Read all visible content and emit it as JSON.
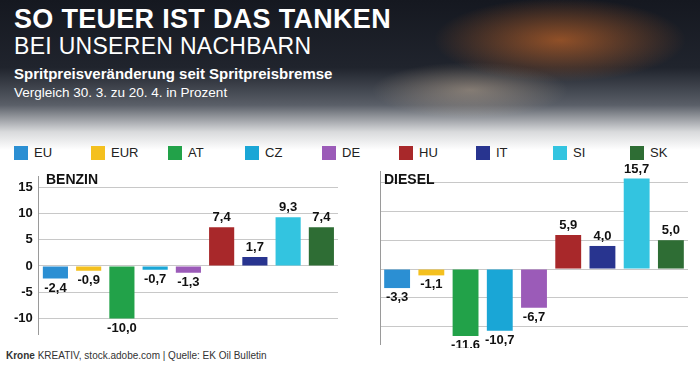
{
  "header": {
    "title": "SO TEUER IST DAS TANKEN",
    "title_line2": "BEI UNSEREN NACHBARN",
    "subtitle": "Spritpreisveränderung seit Spritpreisbremse",
    "description": "Vergleich 30. 3. zu 20. 4. in Prozent"
  },
  "footer": {
    "brand": "Krone",
    "text": "KREATIV, stock.adobe.com | Quelle: EK Oil Bulletin"
  },
  "chart_data": [
    {
      "type": "bar",
      "title": "BENZIN",
      "categories": [
        "EU",
        "EUR",
        "AT",
        "CZ",
        "DE",
        "HU",
        "IT",
        "SI",
        "SK"
      ],
      "values": [
        -2.4,
        -0.9,
        -10.0,
        -0.7,
        -1.3,
        7.4,
        1.7,
        9.3,
        7.4
      ],
      "value_labels": [
        "-2,4",
        "-0,9",
        "-10,0",
        "-0,7",
        "-1,3",
        "7,4",
        "1,7",
        "9,3",
        "7,4"
      ],
      "colors": [
        "#2b8fd3",
        "#f4c01e",
        "#22a249",
        "#1aa6d6",
        "#9b5bb8",
        "#a8282a",
        "#28348f",
        "#33c4e0",
        "#2e6d34"
      ],
      "ylim": [
        -13,
        17
      ],
      "yticks": [
        -10,
        -5,
        0,
        5,
        10,
        15
      ],
      "grid": true,
      "data_labels": true,
      "tick_labels": "y",
      "legend": "top"
    },
    {
      "type": "bar",
      "title": "DIESEL",
      "categories": [
        "EU",
        "EUR",
        "AT",
        "CZ",
        "DE",
        "HU",
        "IT",
        "SI",
        "SK"
      ],
      "values": [
        -3.3,
        -1.1,
        -11.6,
        -10.7,
        -6.7,
        5.9,
        4.0,
        15.7,
        5.0
      ],
      "value_labels": [
        "-3,3",
        "-1,1",
        "-11,6",
        "-10,7",
        "-6,7",
        "5,9",
        "4,0",
        "15,7",
        "5,0"
      ],
      "colors": [
        "#2b8fd3",
        "#f4c01e",
        "#22a249",
        "#1aa6d6",
        "#9b5bb8",
        "#a8282a",
        "#28348f",
        "#33c4e0",
        "#2e6d34"
      ],
      "ylim": [
        -13,
        17
      ],
      "yticks": [
        -10,
        -5,
        0,
        5,
        10,
        15
      ],
      "grid": true,
      "data_labels": true,
      "tick_labels": false,
      "legend": "top"
    }
  ]
}
